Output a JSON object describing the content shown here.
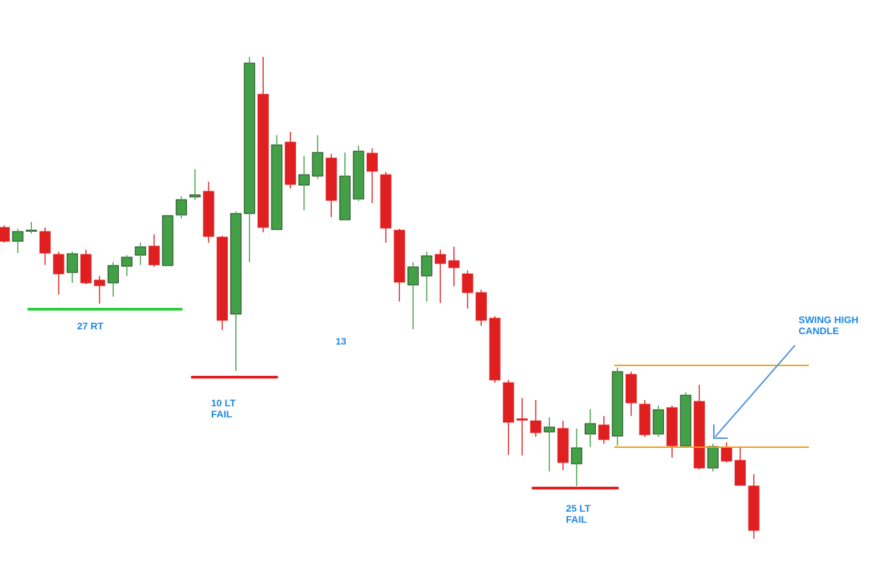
{
  "chart_data": {
    "type": "candlestick",
    "up_color": "#43a047",
    "down_color": "#e02020",
    "ylim": [
      0,
      83.8
    ],
    "open": [
      51.0,
      49.0,
      50.5,
      50.4,
      47.1,
      44.5,
      47.1,
      43.4,
      43.0,
      45.4,
      47.0,
      48.3,
      45.5,
      52.8,
      55.4,
      56.2,
      49.6,
      38.5,
      53.0,
      70.2,
      50.7,
      63.3,
      57.1,
      58.4,
      61.0,
      52.1,
      55.1,
      61.7,
      58.6,
      50.6,
      42.7,
      44.0,
      47.1,
      46.2,
      44.3,
      41.6,
      37.9,
      28.6,
      23.4,
      23.1,
      21.5,
      22.0,
      16.9,
      21.2,
      22.5,
      20.9,
      29.8,
      25.5,
      21.2,
      25.0,
      19.5,
      25.9,
      16.3,
      19.3,
      17.4,
      13.7
    ],
    "high": [
      51.3,
      50.8,
      51.8,
      51.0,
      47.5,
      47.5,
      47.8,
      44.0,
      46.0,
      47.0,
      48.8,
      50.0,
      52.8,
      55.5,
      59.4,
      57.6,
      49.8,
      53.3,
      75.6,
      75.6,
      64.3,
      64.8,
      61.3,
      64.3,
      61.6,
      61.8,
      62.8,
      62.4,
      59.0,
      50.8,
      46.0,
      47.5,
      47.8,
      48.2,
      44.8,
      42.0,
      38.2,
      29.0,
      26.4,
      26.1,
      23.6,
      23.1,
      22.0,
      24.8,
      23.8,
      30.8,
      30.2,
      26.1,
      25.3,
      25.3,
      27.2,
      28.3,
      19.8,
      20.0,
      19.3,
      15.4
    ],
    "low": [
      48.8,
      47.3,
      50.1,
      45.6,
      41.3,
      43.0,
      42.8,
      40.0,
      41.0,
      44.0,
      45.6,
      45.3,
      45.4,
      52.3,
      55.0,
      48.8,
      36.2,
      30.3,
      46.0,
      50.3,
      50.6,
      56.6,
      53.5,
      58.0,
      52.5,
      52.0,
      54.8,
      54.5,
      48.8,
      40.3,
      36.3,
      40.3,
      40.1,
      42.5,
      39.3,
      36.8,
      28.6,
      18.2,
      18.1,
      20.8,
      15.8,
      16.0,
      13.7,
      19.3,
      19.8,
      19.5,
      23.8,
      20.8,
      20.8,
      17.8,
      19.3,
      16.1,
      15.8,
      17.1,
      13.8,
      6.1
    ],
    "close": [
      49.0,
      50.4,
      50.6,
      47.3,
      44.3,
      47.2,
      43.0,
      42.6,
      45.5,
      46.7,
      48.2,
      45.6,
      52.7,
      55.0,
      55.7,
      49.7,
      37.6,
      53.0,
      74.7,
      51.0,
      62.9,
      57.2,
      58.6,
      61.8,
      54.9,
      58.4,
      62.0,
      59.1,
      50.9,
      43.1,
      45.3,
      46.9,
      45.8,
      45.2,
      41.6,
      37.6,
      29.0,
      22.9,
      23.2,
      21.4,
      22.2,
      17.1,
      19.2,
      22.7,
      20.4,
      30.2,
      25.7,
      21.1,
      24.7,
      19.5,
      26.8,
      16.3,
      19.4,
      17.3,
      13.8,
      7.3
    ],
    "levels": [
      {
        "value": 39.2,
        "from": 2,
        "to": 13,
        "color": "#2ecc40"
      },
      {
        "value": 29.4,
        "from": 14,
        "to": 20,
        "color": "#e02020"
      },
      {
        "value": 13.4,
        "from": 39,
        "to": 45,
        "color": "#e02020"
      },
      {
        "value": 31.1,
        "from": 45,
        "to": 59,
        "color": "#f39c12"
      },
      {
        "value": 19.3,
        "from": 45,
        "to": 59,
        "color": "#f39c12"
      }
    ],
    "annotations": [
      {
        "lines": [
          "27 RT"
        ]
      },
      {
        "lines": [
          "13"
        ]
      },
      {
        "lines": [
          "10 LT",
          "FAIL"
        ]
      },
      {
        "lines": [
          "25 LT",
          "FAIL"
        ]
      },
      {
        "lines": [
          "SWING HIGH",
          "CANDLE"
        ]
      }
    ]
  }
}
